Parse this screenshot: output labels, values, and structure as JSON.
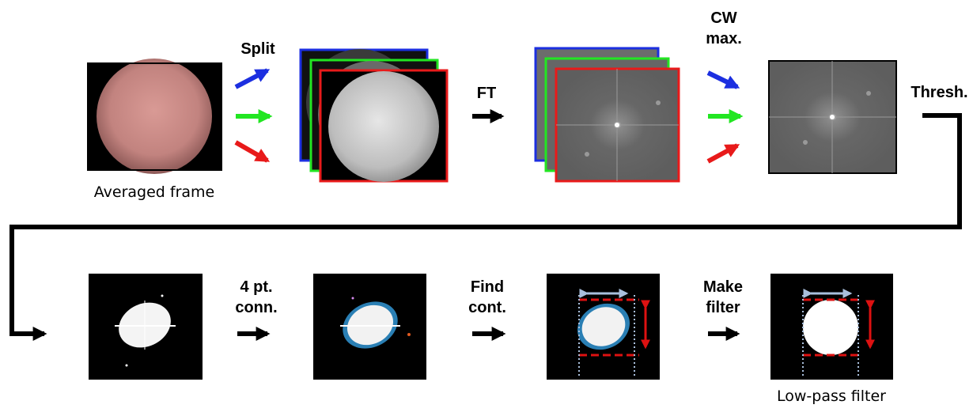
{
  "labels": {
    "split": "Split",
    "ft": "FT",
    "cw_max": "CW\nmax.",
    "thresh": "Thresh.",
    "four_pt": "4 pt.\nconn.",
    "find_cont": "Find\ncont.",
    "make_filter": "Make\nfilter"
  },
  "captions": {
    "averaged": "Averaged frame",
    "lowpass": "Low-pass filter"
  },
  "colors": {
    "blue": "#1c2fe0",
    "green": "#22e622",
    "red": "#e81a1a",
    "fundus": "#c88a86",
    "spectrum": "#6a6a6a",
    "dashed_red": "#dd1111",
    "dotted_blue": "#a9bfdc"
  }
}
